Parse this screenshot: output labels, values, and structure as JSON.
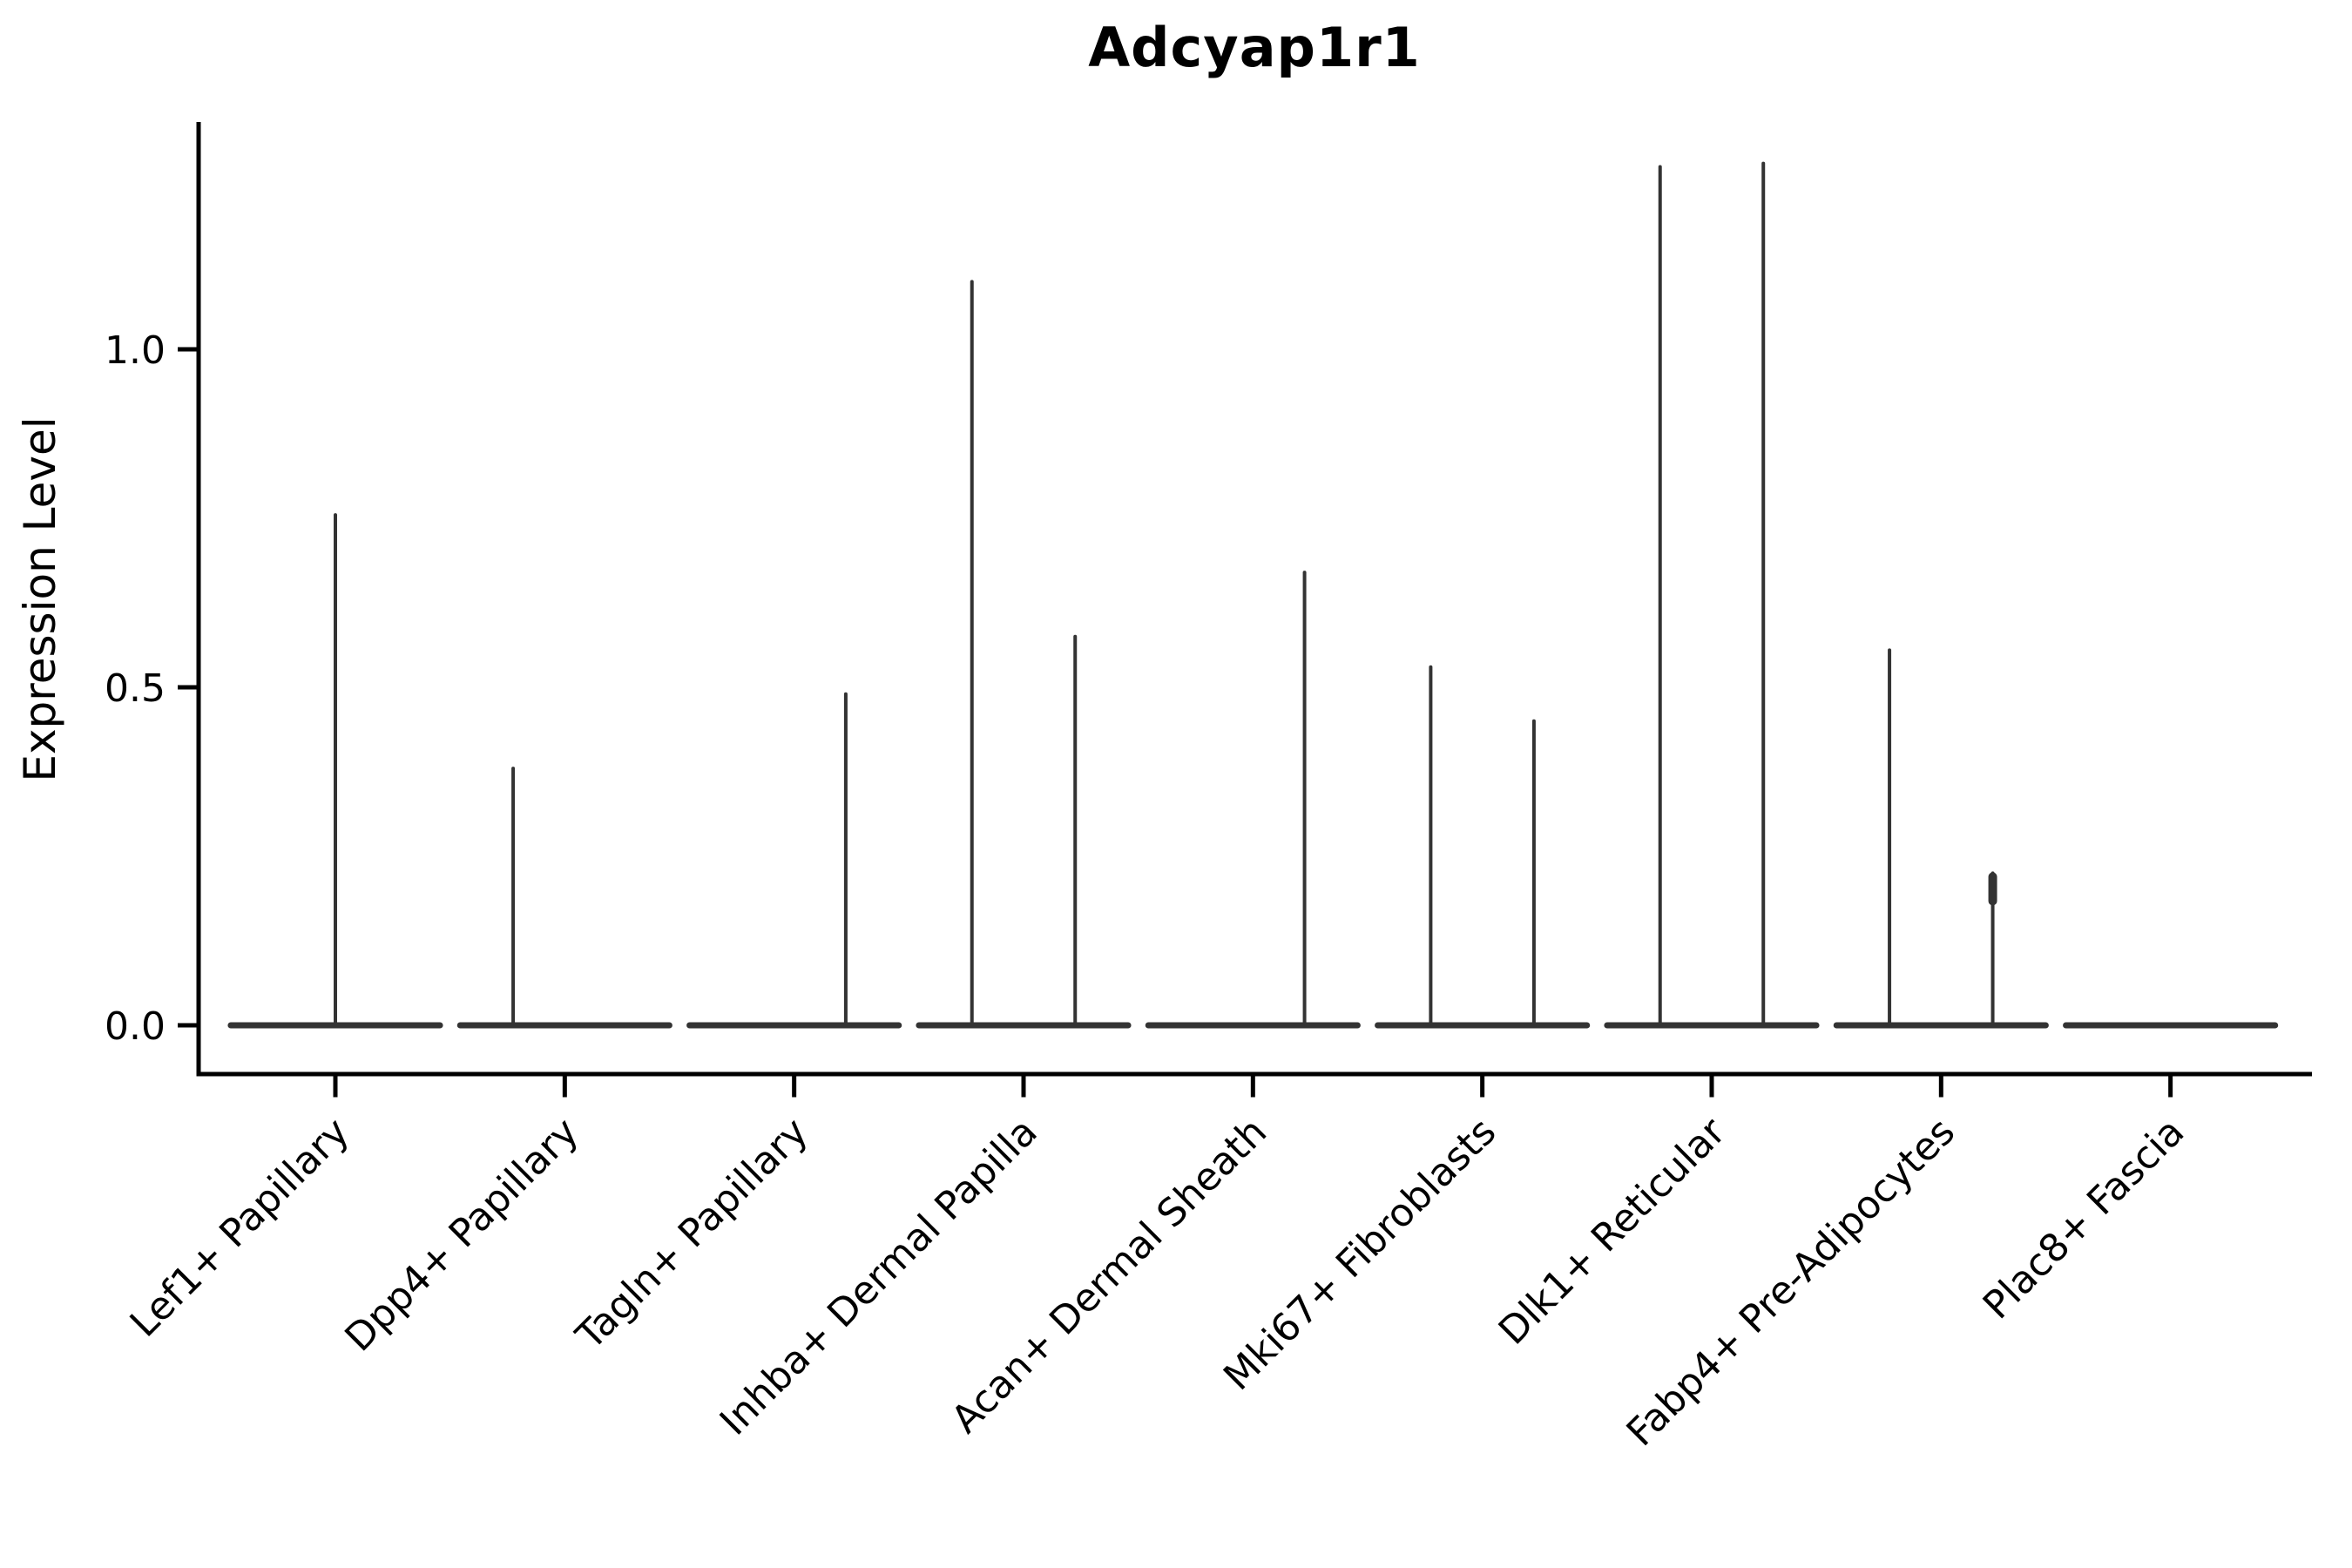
{
  "chart_data": {
    "type": "violin",
    "title": "Adcyap1r1",
    "ylabel": "Expression Level",
    "xlabel": "",
    "yticks": [
      0.0,
      0.5,
      1.0
    ],
    "ytick_labels": [
      "0.0",
      "0.5",
      "1.0"
    ],
    "ylim": [
      -0.07,
      1.34
    ],
    "grid": false,
    "legend": "none",
    "categories": [
      "Lef1+ Papillary",
      "Dpp4+ Papillary",
      "Tagln+ Papillary",
      "Inhba+ Dermal Papilla",
      "Acan+ Dermal Sheath",
      "Mki67+ Fibroblasts",
      "Dlk1+ Reticular",
      "Fabp4+ Pre-Adipocytes",
      "Plac8+ Fascia"
    ],
    "base_halfwidth_frac": 0.456,
    "violins": [
      {
        "category": "Lef1+ Papillary",
        "spikes": [
          {
            "offset": 0.0,
            "max": 0.755
          }
        ]
      },
      {
        "category": "Dpp4+ Papillary",
        "spikes": [
          {
            "offset": -0.225,
            "max": 0.38
          }
        ]
      },
      {
        "category": "Tagln+ Papillary",
        "spikes": [
          {
            "offset": 0.225,
            "max": 0.49
          }
        ]
      },
      {
        "category": "Inhba+ Dermal Papilla",
        "spikes": [
          {
            "offset": -0.225,
            "max": 1.1
          },
          {
            "offset": 0.225,
            "max": 0.575
          }
        ]
      },
      {
        "category": "Acan+ Dermal Sheath",
        "spikes": [
          {
            "offset": 0.225,
            "max": 0.67
          }
        ]
      },
      {
        "category": "Mki67+ Fibroblasts",
        "spikes": [
          {
            "offset": -0.225,
            "max": 0.53
          },
          {
            "offset": 0.225,
            "max": 0.45
          }
        ]
      },
      {
        "category": "Dlk1+ Reticular",
        "spikes": [
          {
            "offset": -0.225,
            "max": 1.27
          },
          {
            "offset": 0.225,
            "max": 1.275
          }
        ]
      },
      {
        "category": "Fabp4+ Pre-Adipocytes",
        "spikes": [
          {
            "offset": -0.225,
            "max": 0.555
          },
          {
            "offset": 0.225,
            "max": 0.225,
            "tip_bulge": true
          }
        ]
      },
      {
        "category": "Plac8+ Fascia",
        "spikes": []
      }
    ],
    "colors": {
      "violin_outline": "#333333",
      "axis": "#000000",
      "text": "#000000",
      "background": "#ffffff"
    }
  }
}
